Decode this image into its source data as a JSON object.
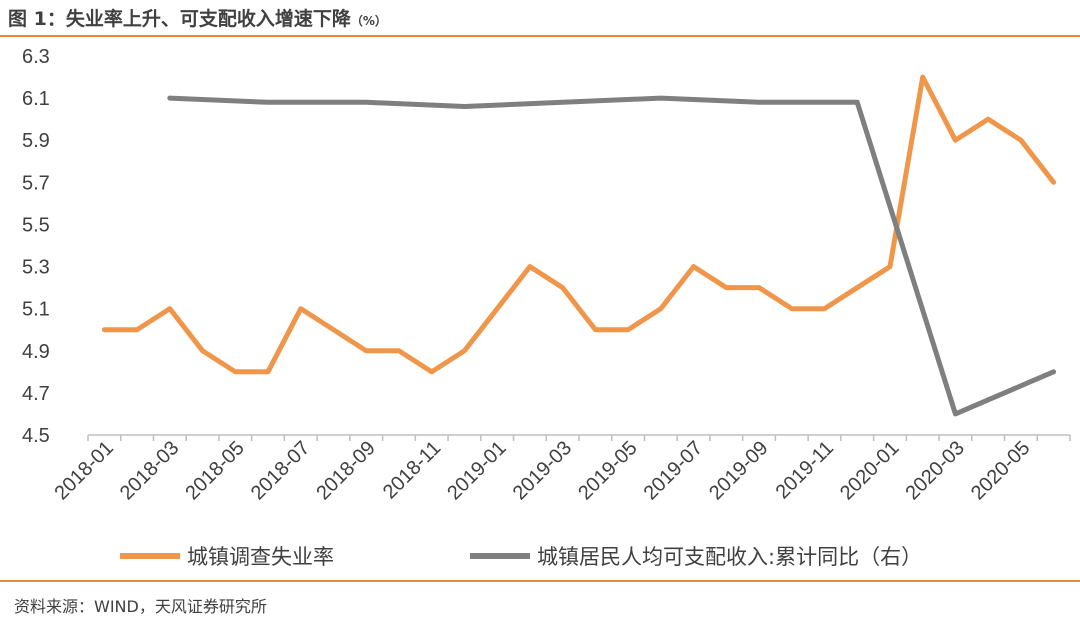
{
  "header": {
    "title": "图 1：失业率上升、可支配收入增速下降",
    "unit": "（%）"
  },
  "footer": {
    "source": "资料来源：WIND，天风证券研究所"
  },
  "chart_data": {
    "type": "line",
    "xlabel": "",
    "ylabel": "",
    "ylim": [
      4.5,
      6.3
    ],
    "yticks": [
      "6.3",
      "6.1",
      "5.9",
      "5.7",
      "5.5",
      "5.3",
      "5.1",
      "4.9",
      "4.7",
      "4.5"
    ],
    "x_tick_labels": [
      "2018-01",
      "2018-03",
      "2018-05",
      "2018-07",
      "2018-09",
      "2018-11",
      "2019-01",
      "2019-03",
      "2019-05",
      "2019-07",
      "2019-09",
      "2019-11",
      "2020-01",
      "2020-03",
      "2020-05"
    ],
    "x": [
      "2018-01",
      "2018-02",
      "2018-03",
      "2018-04",
      "2018-05",
      "2018-06",
      "2018-07",
      "2018-08",
      "2018-09",
      "2018-10",
      "2018-11",
      "2018-12",
      "2019-01",
      "2019-02",
      "2019-03",
      "2019-04",
      "2019-05",
      "2019-06",
      "2019-07",
      "2019-08",
      "2019-09",
      "2019-10",
      "2019-11",
      "2019-12",
      "2020-01",
      "2020-02",
      "2020-03",
      "2020-04",
      "2020-05",
      "2020-06"
    ],
    "grid": false,
    "legend_position": "bottom",
    "series": [
      {
        "name": "城镇调查失业率",
        "color": "#f0964a",
        "values": [
          5.0,
          5.0,
          5.1,
          4.9,
          4.8,
          4.8,
          5.1,
          5.0,
          4.9,
          4.9,
          4.8,
          4.9,
          5.1,
          5.3,
          5.2,
          5.0,
          5.0,
          5.1,
          5.3,
          5.2,
          5.2,
          5.1,
          5.1,
          5.2,
          5.3,
          6.2,
          5.9,
          6.0,
          5.9,
          5.7
        ]
      },
      {
        "name": "城镇居民人均可支配收入:累计同比（右）",
        "color": "#7f7f7f",
        "values": [
          null,
          null,
          6.1,
          null,
          null,
          6.08,
          null,
          null,
          6.08,
          null,
          null,
          6.06,
          null,
          null,
          6.08,
          null,
          null,
          6.1,
          null,
          null,
          6.08,
          null,
          null,
          6.08,
          null,
          null,
          4.6,
          null,
          null,
          4.8
        ]
      }
    ]
  }
}
